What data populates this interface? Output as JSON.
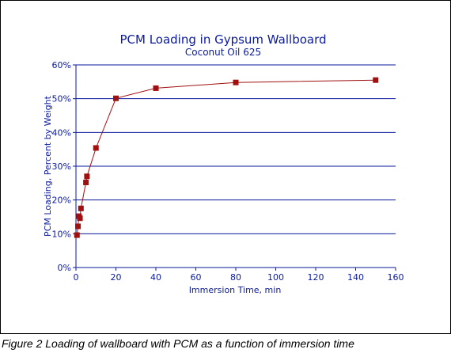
{
  "caption": "Figure 2   Loading of wallboard with PCM as a function of immersion time",
  "colors": {
    "axis_text": "#0b1a9c",
    "grid": "#0b1a9c",
    "series": "#a01010"
  },
  "chart_data": {
    "type": "line",
    "title": "PCM Loading in Gypsum Wallboard",
    "subtitle": "Coconut Oil 625",
    "xlabel": "Immersion Time,  min",
    "ylabel": "PCM Loading,    Percent by Weight",
    "xlim": [
      0,
      160
    ],
    "ylim": [
      0,
      60
    ],
    "x_ticks": [
      "0",
      "20",
      "40",
      "60",
      "80",
      "100",
      "120",
      "140",
      "160"
    ],
    "y_ticks": [
      "0%",
      "10%",
      "20%",
      "30%",
      "40%",
      "50%",
      "60%"
    ],
    "grid": "horizontal",
    "marker": "square",
    "series": [
      {
        "x": [
          0.5,
          1,
          1.5,
          2,
          2.5,
          5,
          5.5,
          10,
          20,
          40,
          80,
          150
        ],
        "y": [
          9.6,
          12.2,
          15.2,
          14.6,
          17.5,
          25.2,
          27.0,
          35.4,
          50.1,
          53.1,
          54.8,
          55.5
        ]
      }
    ]
  }
}
